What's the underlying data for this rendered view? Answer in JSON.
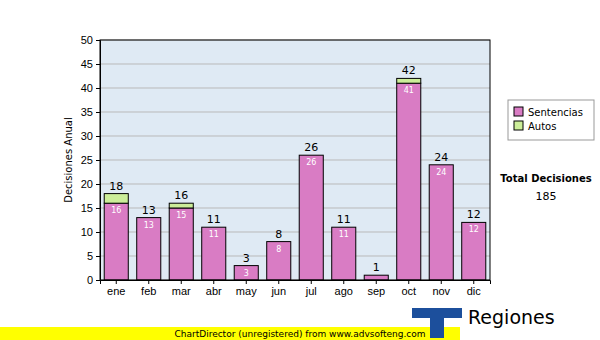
{
  "chart_data": {
    "type": "bar",
    "stacked": true,
    "categories": [
      "ene",
      "feb",
      "mar",
      "abr",
      "may",
      "jun",
      "jul",
      "ago",
      "sep",
      "oct",
      "nov",
      "dic"
    ],
    "series": [
      {
        "name": "Sentencias",
        "color": "#d97cc4",
        "values": [
          16,
          13,
          15,
          11,
          3,
          8,
          26,
          11,
          1,
          41,
          24,
          12
        ],
        "value_labels": [
          "16",
          "13",
          "15",
          "11",
          "3",
          "8",
          "26",
          "11",
          null,
          "41",
          "24",
          "12"
        ]
      },
      {
        "name": "Autos",
        "color": "#ccee99",
        "values": [
          2,
          0,
          1,
          0,
          0,
          0,
          0,
          0,
          0,
          1,
          0,
          0
        ]
      }
    ],
    "totals": [
      18,
      13,
      16,
      11,
      3,
      8,
      26,
      11,
      1,
      42,
      24,
      12
    ],
    "ylim": [
      0,
      50
    ],
    "yticks": [
      0,
      5,
      10,
      15,
      20,
      25,
      30,
      35,
      40,
      45,
      50
    ],
    "ylabel": "Decisiones Anual",
    "grid": true,
    "legend": "right",
    "data_labels": true,
    "annotation": {
      "label": "Total Decisiones",
      "value": 185
    },
    "footer": "ChartDirector (unregistered) from www.advsofteng.com",
    "logo_text": "Regiones"
  }
}
